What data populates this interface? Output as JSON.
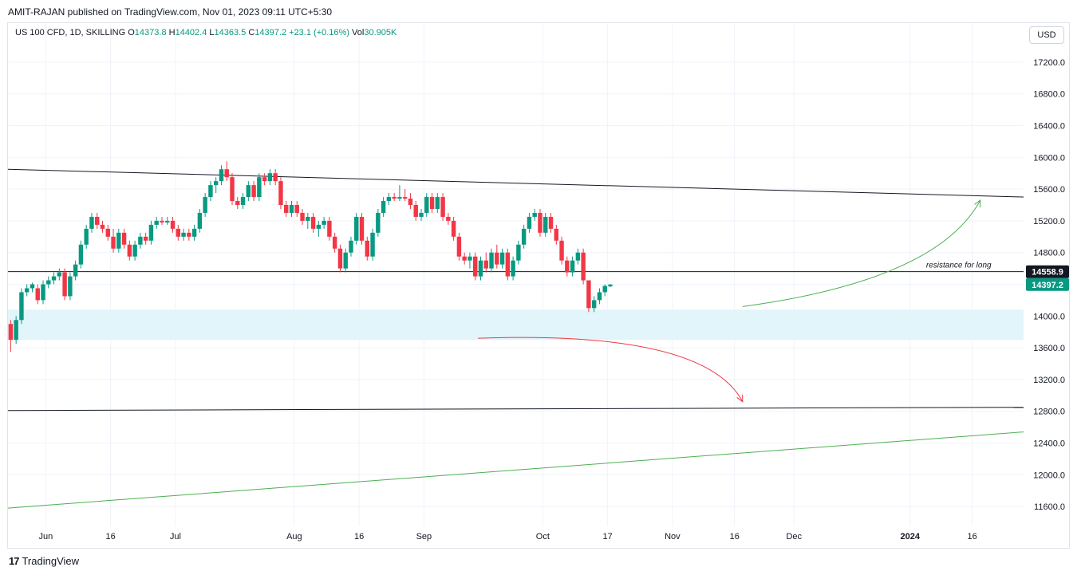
{
  "header": {
    "attribution": "AMIT-RAJAN published on TradingView.com, Nov 01, 2023 09:11 UTC+5:30"
  },
  "legend": {
    "symbol": "US 100 CFD, 1D, SKILLING",
    "open_label": "O",
    "open": "14373.8",
    "high_label": "H",
    "high": "14402.4",
    "low_label": "L",
    "low": "14363.5",
    "close_label": "C",
    "close": "14397.2",
    "change": "+23.1 (+0.16%)",
    "vol_label": "Vol",
    "vol": "30.905K"
  },
  "currency_button": "USD",
  "footer": {
    "brand": "TradingView",
    "logo_glyph": "17"
  },
  "colors": {
    "up": "#089981",
    "down": "#f23645",
    "grid": "#f0f3fa",
    "zone": "#e1f5fb",
    "green_line": "#4caf50",
    "red_arrow": "#f23645",
    "black_line": "#131722"
  },
  "chart_data": {
    "type": "candlestick",
    "y_range": [
      11400,
      17400
    ],
    "x_range_bars": [
      0,
      188
    ],
    "y_ticks": [
      "17200.0",
      "16800.0",
      "16400.0",
      "16000.0",
      "15600.0",
      "15200.0",
      "14800.0",
      "14400.0",
      "14000.0",
      "13600.0",
      "13200.0",
      "12800.0",
      "12400.0",
      "12000.0",
      "11600.0"
    ],
    "y_tick_values": [
      17200,
      16800,
      16400,
      16000,
      15600,
      15200,
      14800,
      14400,
      14000,
      13600,
      13200,
      12800,
      12400,
      12000,
      11600
    ],
    "x_ticks": [
      {
        "label": "Jun",
        "bar": 7,
        "bold": false
      },
      {
        "label": "16",
        "bar": 19,
        "bold": false
      },
      {
        "label": "Jul",
        "bar": 31,
        "bold": false
      },
      {
        "label": "Aug",
        "bar": 53,
        "bold": false
      },
      {
        "label": "16",
        "bar": 65,
        "bold": false
      },
      {
        "label": "Sep",
        "bar": 77,
        "bold": false
      },
      {
        "label": "Oct",
        "bar": 99,
        "bold": false
      },
      {
        "label": "17",
        "bar": 111,
        "bold": false
      },
      {
        "label": "Nov",
        "bar": 123,
        "bold": false
      },
      {
        "label": "16",
        "bar": 134.5,
        "bold": false
      },
      {
        "label": "Dec",
        "bar": 145.5,
        "bold": false
      },
      {
        "label": "2024",
        "bar": 167,
        "bold": true
      },
      {
        "label": "16",
        "bar": 178.5,
        "bold": false
      }
    ],
    "candles": [
      [
        13900,
        13950,
        13550,
        13700
      ],
      [
        13700,
        14000,
        13650,
        13950
      ],
      [
        13950,
        14350,
        13900,
        14300
      ],
      [
        14300,
        14400,
        14250,
        14350
      ],
      [
        14350,
        14420,
        14300,
        14400
      ],
      [
        14350,
        14400,
        14150,
        14200
      ],
      [
        14200,
        14450,
        14150,
        14400
      ],
      [
        14400,
        14500,
        14350,
        14450
      ],
      [
        14450,
        14550,
        14400,
        14500
      ],
      [
        14500,
        14600,
        14450,
        14550
      ],
      [
        14550,
        14600,
        14200,
        14250
      ],
      [
        14250,
        14550,
        14200,
        14500
      ],
      [
        14500,
        14700,
        14450,
        14650
      ],
      [
        14650,
        14950,
        14600,
        14900
      ],
      [
        14900,
        15150,
        14850,
        15100
      ],
      [
        15100,
        15300,
        15050,
        15250
      ],
      [
        15250,
        15300,
        15100,
        15150
      ],
      [
        15150,
        15200,
        15050,
        15100
      ],
      [
        15100,
        15150,
        14950,
        15000
      ],
      [
        15000,
        15100,
        14800,
        14850
      ],
      [
        14850,
        15100,
        14800,
        15050
      ],
      [
        15050,
        15100,
        14850,
        14900
      ],
      [
        14900,
        14950,
        14700,
        14750
      ],
      [
        14750,
        14950,
        14700,
        14900
      ],
      [
        14900,
        15050,
        14850,
        15000
      ],
      [
        15000,
        15050,
        14900,
        14950
      ],
      [
        14950,
        15200,
        14900,
        15150
      ],
      [
        15150,
        15250,
        15100,
        15200
      ],
      [
        15200,
        15250,
        15150,
        15180
      ],
      [
        15180,
        15250,
        15150,
        15200
      ],
      [
        15200,
        15250,
        15050,
        15100
      ],
      [
        15100,
        15150,
        14950,
        15000
      ],
      [
        15000,
        15100,
        14950,
        15050
      ],
      [
        15050,
        15100,
        14950,
        15000
      ],
      [
        15000,
        15150,
        14950,
        15100
      ],
      [
        15100,
        15350,
        15050,
        15300
      ],
      [
        15300,
        15550,
        15250,
        15500
      ],
      [
        15500,
        15700,
        15450,
        15650
      ],
      [
        15650,
        15750,
        15550,
        15700
      ],
      [
        15700,
        15900,
        15650,
        15850
      ],
      [
        15850,
        15950,
        15700,
        15750
      ],
      [
        15750,
        15800,
        15400,
        15450
      ],
      [
        15450,
        15500,
        15350,
        15400
      ],
      [
        15400,
        15550,
        15350,
        15500
      ],
      [
        15500,
        15700,
        15450,
        15650
      ],
      [
        15650,
        15700,
        15450,
        15500
      ],
      [
        15500,
        15800,
        15450,
        15750
      ],
      [
        15750,
        15800,
        15650,
        15700
      ],
      [
        15700,
        15850,
        15650,
        15800
      ],
      [
        15800,
        15850,
        15650,
        15700
      ],
      [
        15700,
        15750,
        15350,
        15400
      ],
      [
        15400,
        15450,
        15250,
        15300
      ],
      [
        15300,
        15450,
        15250,
        15400
      ],
      [
        15400,
        15450,
        15250,
        15300
      ],
      [
        15300,
        15350,
        15150,
        15200
      ],
      [
        15200,
        15300,
        15100,
        15250
      ],
      [
        15250,
        15300,
        15050,
        15100
      ],
      [
        15100,
        15200,
        15000,
        15150
      ],
      [
        15150,
        15250,
        15100,
        15200
      ],
      [
        15200,
        15250,
        14950,
        15000
      ],
      [
        15000,
        15050,
        14800,
        14850
      ],
      [
        14850,
        14900,
        14550,
        14600
      ],
      [
        14600,
        14850,
        14550,
        14800
      ],
      [
        14800,
        15000,
        14750,
        14950
      ],
      [
        14950,
        15300,
        14900,
        15250
      ],
      [
        15250,
        15300,
        14900,
        14950
      ],
      [
        14950,
        15000,
        14700,
        14750
      ],
      [
        14750,
        15100,
        14700,
        15050
      ],
      [
        15050,
        15350,
        15000,
        15300
      ],
      [
        15300,
        15500,
        15250,
        15450
      ],
      [
        15450,
        15550,
        15400,
        15500
      ],
      [
        15500,
        15550,
        15450,
        15480
      ],
      [
        15480,
        15650,
        15450,
        15500
      ],
      [
        15500,
        15600,
        15450,
        15480
      ],
      [
        15480,
        15550,
        15350,
        15400
      ],
      [
        15400,
        15450,
        15200,
        15250
      ],
      [
        15250,
        15350,
        15200,
        15300
      ],
      [
        15300,
        15550,
        15250,
        15500
      ],
      [
        15500,
        15550,
        15300,
        15350
      ],
      [
        15350,
        15550,
        15300,
        15500
      ],
      [
        15500,
        15550,
        15200,
        15250
      ],
      [
        15250,
        15300,
        15150,
        15200
      ],
      [
        15200,
        15250,
        14950,
        15000
      ],
      [
        15000,
        15050,
        14700,
        14750
      ],
      [
        14750,
        14800,
        14650,
        14700
      ],
      [
        14700,
        14800,
        14600,
        14750
      ],
      [
        14750,
        14800,
        14450,
        14500
      ],
      [
        14500,
        14750,
        14450,
        14700
      ],
      [
        14700,
        14800,
        14550,
        14600
      ],
      [
        14600,
        14850,
        14550,
        14800
      ],
      [
        14800,
        14900,
        14600,
        14650
      ],
      [
        14650,
        14850,
        14600,
        14800
      ],
      [
        14800,
        14850,
        14450,
        14500
      ],
      [
        14500,
        14750,
        14450,
        14700
      ],
      [
        14700,
        14950,
        14650,
        14900
      ],
      [
        14900,
        15150,
        14850,
        15100
      ],
      [
        15100,
        15300,
        15050,
        15250
      ],
      [
        15250,
        15350,
        15200,
        15300
      ],
      [
        15300,
        15350,
        15000,
        15050
      ],
      [
        15050,
        15300,
        15000,
        15250
      ],
      [
        15250,
        15300,
        15050,
        15100
      ],
      [
        15100,
        15150,
        14900,
        14950
      ],
      [
        14950,
        15000,
        14650,
        14700
      ],
      [
        14700,
        14750,
        14500,
        14550
      ],
      [
        14550,
        14750,
        14500,
        14700
      ],
      [
        14700,
        14850,
        14650,
        14800
      ],
      [
        14800,
        14850,
        14400,
        14450
      ],
      [
        14450,
        14450,
        14050,
        14100
      ],
      [
        14100,
        14250,
        14050,
        14200
      ],
      [
        14200,
        14350,
        14150,
        14300
      ],
      [
        14300,
        14400,
        14250,
        14380
      ],
      [
        14374,
        14402,
        14364,
        14397
      ]
    ],
    "start_bar": 0,
    "zone": {
      "from": 14080,
      "to": 13700,
      "fill": "#e1f5fb"
    },
    "lines": [
      {
        "name": "upper-trendline",
        "from": [
          0,
          15850
        ],
        "to": [
          188,
          15500
        ],
        "color": "#131722"
      },
      {
        "name": "resistance-line",
        "from": [
          0,
          14560
        ],
        "to": [
          188,
          14560
        ],
        "color": "#131722"
      },
      {
        "name": "lower-horizontal-line",
        "from": [
          0,
          12810
        ],
        "to": [
          188,
          12850
        ],
        "color": "#131722"
      },
      {
        "name": "green-trendline",
        "from": [
          0,
          11580
        ],
        "to": [
          188,
          12540
        ],
        "color": "#4caf50"
      }
    ],
    "annotation": {
      "text": "resistance for long",
      "bar": 176,
      "value": 14560
    },
    "price_labels": [
      {
        "text": "14558.9",
        "value": 14558.9,
        "bg": "#131722"
      },
      {
        "text": "14397.2",
        "value": 14397.2,
        "bg": "#089981"
      }
    ],
    "arrows": [
      {
        "name": "green-arrow",
        "color": "#4caf50",
        "from": [
          136,
          14120
        ],
        "ctrl": [
          172,
          14450
        ],
        "to": [
          180,
          15460
        ]
      },
      {
        "name": "red-arrow",
        "color": "#f23645",
        "from": [
          87,
          13720
        ],
        "ctrl": [
          129,
          13820
        ],
        "to": [
          136,
          12920
        ]
      }
    ]
  }
}
